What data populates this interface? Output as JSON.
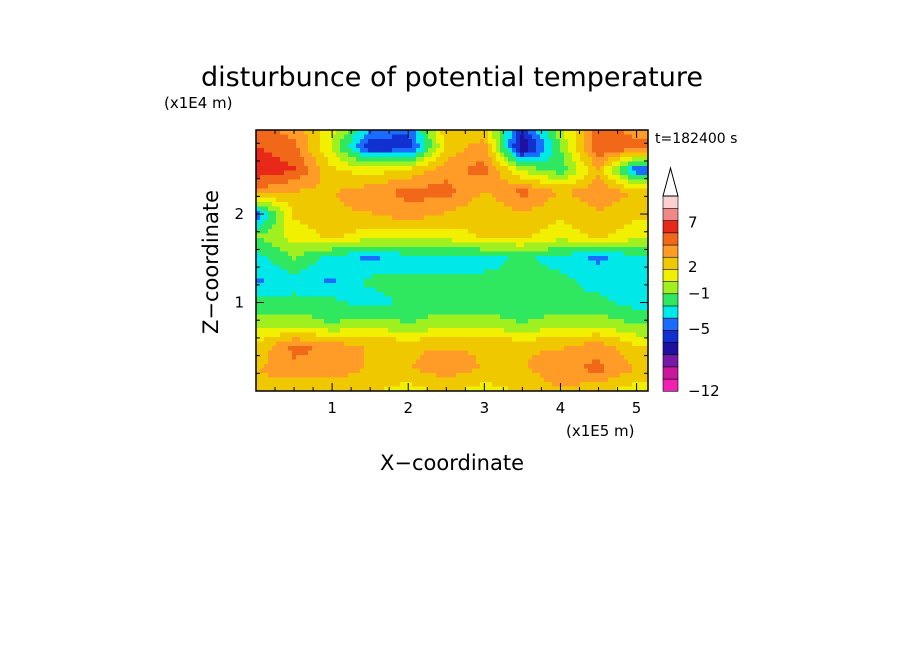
{
  "chart_data": {
    "type": "heatmap",
    "title": "disturbunce of potential temperature",
    "xlabel": "X−coordinate",
    "ylabel": "Z−coordinate",
    "x_unit": "(x1E5 m)",
    "y_unit": "(x1E4 m)",
    "time_label": "t=182400 s",
    "xlim": [
      0,
      5.15
    ],
    "ylim": [
      0,
      2.95
    ],
    "x_ticks": [
      {
        "value": 1,
        "label": "1"
      },
      {
        "value": 2,
        "label": "2"
      },
      {
        "value": 3,
        "label": "3"
      },
      {
        "value": 4,
        "label": "4"
      },
      {
        "value": 5,
        "label": "5"
      }
    ],
    "y_ticks": [
      {
        "value": 1,
        "label": "1"
      },
      {
        "value": 2,
        "label": "2"
      }
    ],
    "colorbar": {
      "labels": [
        {
          "value": 7,
          "label": "7"
        },
        {
          "value": 2,
          "label": "2"
        },
        {
          "value": -1,
          "label": "−1"
        },
        {
          "value": -5,
          "label": "−5"
        },
        {
          "value": -12,
          "label": "−12"
        }
      ],
      "colors": [
        "#f020b0",
        "#c8189c",
        "#7818a8",
        "#2010a0",
        "#1030d0",
        "#1a6cff",
        "#00e8e8",
        "#30e860",
        "#a0f020",
        "#f0f000",
        "#f0c800",
        "#ff9c28",
        "#f06818",
        "#e82818",
        "#f08888",
        "#fad0d0"
      ],
      "extend_top": true
    },
    "field": {
      "x": [
        0.0,
        0.5,
        1.0,
        1.5,
        2.0,
        2.5,
        3.0,
        3.5,
        4.0,
        4.5,
        5.0
      ],
      "z": [
        0.0,
        0.25,
        0.5,
        0.75,
        1.0,
        1.25,
        1.5,
        1.75,
        2.0,
        2.25,
        2.5,
        2.75,
        2.95
      ],
      "values": [
        [
          3,
          2,
          2,
          2,
          1,
          2,
          1,
          2,
          3,
          2,
          1
        ],
        [
          3,
          4,
          4,
          3,
          3,
          4,
          3,
          3,
          4,
          5,
          3
        ],
        [
          2,
          5,
          4,
          3,
          3,
          3,
          3,
          3,
          3,
          4,
          2
        ],
        [
          0,
          0,
          -1,
          0,
          -1,
          0,
          0,
          -1,
          0,
          0,
          -1
        ],
        [
          -2,
          -2,
          -2,
          -3,
          -2,
          -2,
          -2,
          -2,
          -2,
          -2,
          -3
        ],
        [
          -4,
          -3,
          -4,
          -2,
          -2,
          -2,
          -2,
          -2,
          -2,
          -3,
          -3
        ],
        [
          -3,
          -1,
          -3,
          -4,
          -3,
          -3,
          -3,
          -2,
          -3,
          -4,
          -3
        ],
        [
          -1,
          1,
          2,
          1,
          1,
          1,
          2,
          2,
          1,
          2,
          1
        ],
        [
          -5,
          2,
          3,
          3,
          4,
          3,
          2,
          3,
          2,
          3,
          2
        ],
        [
          4,
          3,
          3,
          4,
          5,
          5,
          3,
          5,
          3,
          4,
          3
        ],
        [
          7,
          6,
          2,
          1,
          2,
          4,
          5,
          0,
          -2,
          3,
          -5
        ],
        [
          6,
          5,
          0,
          -6,
          -6,
          2,
          4,
          -8,
          -1,
          6,
          5
        ],
        [
          5,
          4,
          1,
          -4,
          -5,
          3,
          2,
          -6,
          0,
          5,
          4
        ]
      ]
    }
  }
}
